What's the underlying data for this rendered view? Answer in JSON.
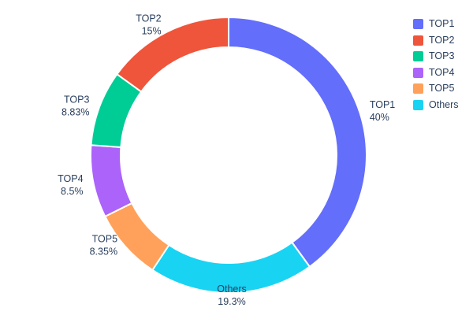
{
  "chart_data": {
    "type": "pie",
    "subtype": "donut",
    "title": "",
    "labels": [
      "TOP1",
      "TOP2",
      "TOP3",
      "TOP4",
      "TOP5",
      "Others"
    ],
    "values": [
      40,
      15,
      8.83,
      8.5,
      8.35,
      19.3
    ],
    "value_labels": [
      "40%",
      "15%",
      "8.83%",
      "8.5%",
      "8.35%",
      "19.3%"
    ],
    "colors": [
      "#636EFA",
      "#EF553B",
      "#00CC96",
      "#AB63FA",
      "#FFA15A",
      "#19D3F3"
    ],
    "hole": 0.78,
    "direction": "clockwise",
    "start_angle_deg": 0,
    "clockwise_order": [
      0,
      5,
      4,
      3,
      2,
      1
    ],
    "legend": {
      "position": "right",
      "items": [
        "TOP1",
        "TOP2",
        "TOP3",
        "TOP4",
        "TOP5",
        "Others"
      ]
    },
    "text_color": "#2a3f5f",
    "background": "#ffffff",
    "slice_border_color": "#ffffff"
  }
}
